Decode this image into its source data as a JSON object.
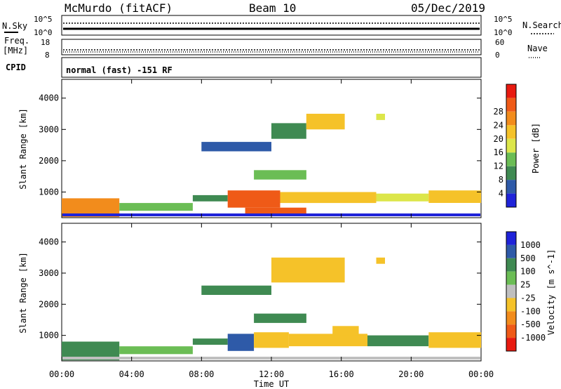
{
  "header": {
    "station": "McMurdo (fitACF)",
    "beam": "Beam 10",
    "date": "05/Dec/2019"
  },
  "aux_panels": {
    "nsky_label": "N.Sky",
    "nsearch_label": "N.Search",
    "noise_ticks": [
      "10^5",
      "10^0"
    ],
    "freq_label_1": "Freq.",
    "freq_label_2": "[MHz]",
    "freq_ticks": [
      "18",
      "8"
    ],
    "nave_label": "Nave",
    "nave_ticks": [
      "60",
      "0"
    ],
    "cpid_label": "CPID",
    "cpid_text": "normal (fast) -151 RF"
  },
  "colors": {
    "power": [
      "#1f23d9",
      "#2e5aa8",
      "#3f8a52",
      "#6bbd55",
      "#dce64a",
      "#f5c229",
      "#f28c1c",
      "#ef5a17",
      "#e81a10"
    ],
    "velocity": [
      "#1f23d9",
      "#2e5aa8",
      "#3f8a52",
      "#6bbd55",
      "#bfbfbf",
      "#f5c229",
      "#f28c1c",
      "#ef5a17",
      "#e81a10"
    ]
  },
  "chart_data": [
    {
      "type": "heatmap",
      "title": "Power",
      "xlabel": "Time UT",
      "ylabel": "Slant Range [km]",
      "x_ticks": [
        "00:00",
        "04:00",
        "08:00",
        "12:00",
        "16:00",
        "20:00",
        "00:00"
      ],
      "y_ticks": [
        1000,
        2000,
        3000,
        4000
      ],
      "ylim": [
        180,
        4600
      ],
      "xlim_hours": [
        0,
        24
      ],
      "colorbar_label": "Power [dB]",
      "colorbar_ticks": [
        "4",
        "8",
        "12",
        "16",
        "20",
        "24",
        "28"
      ],
      "colorbar_range": [
        0,
        32
      ],
      "regions": [
        {
          "t0": 0.0,
          "t1": 3.3,
          "r0": 200,
          "r1": 800,
          "value": 24
        },
        {
          "t0": 3.3,
          "t1": 7.5,
          "r0": 400,
          "r1": 650,
          "value": 14
        },
        {
          "t0": 7.5,
          "t1": 9.5,
          "r0": 700,
          "r1": 900,
          "value": 8
        },
        {
          "t0": 9.5,
          "t1": 12.5,
          "r0": 500,
          "r1": 1050,
          "value": 28
        },
        {
          "t0": 12.5,
          "t1": 18.0,
          "r0": 650,
          "r1": 1000,
          "value": 18
        },
        {
          "t0": 18.0,
          "t1": 21.0,
          "r0": 700,
          "r1": 950,
          "value": 16
        },
        {
          "t0": 21.0,
          "t1": 24.0,
          "r0": 650,
          "r1": 1050,
          "value": 20
        },
        {
          "t0": 10.5,
          "t1": 14.0,
          "r0": 300,
          "r1": 500,
          "value": 26
        },
        {
          "t0": 11.0,
          "t1": 14.0,
          "r0": 1400,
          "r1": 1700,
          "value": 12
        },
        {
          "t0": 8.0,
          "t1": 12.0,
          "r0": 2300,
          "r1": 2600,
          "value": 6
        },
        {
          "t0": 12.0,
          "t1": 14.0,
          "r0": 2700,
          "r1": 3200,
          "value": 8
        },
        {
          "t0": 14.0,
          "t1": 16.2,
          "r0": 3000,
          "r1": 3500,
          "value": 18
        },
        {
          "t0": 18.0,
          "t1": 18.5,
          "r0": 3300,
          "r1": 3500,
          "value": 16
        }
      ]
    },
    {
      "type": "heatmap",
      "title": "Velocity",
      "xlabel": "Time UT",
      "ylabel": "Slant Range [km]",
      "x_ticks": [
        "00:00",
        "04:00",
        "08:00",
        "12:00",
        "16:00",
        "20:00",
        "00:00"
      ],
      "y_ticks": [
        1000,
        2000,
        3000,
        4000
      ],
      "ylim": [
        180,
        4600
      ],
      "xlim_hours": [
        0,
        24
      ],
      "colorbar_label": "Velocity [m s^-1]",
      "colorbar_ticks": [
        "1000",
        "500",
        "100",
        "25",
        "-25",
        "-100",
        "-500",
        "-1000"
      ],
      "regions": [
        {
          "t0": 0.0,
          "t1": 3.3,
          "r0": 200,
          "r1": 800,
          "value": 100
        },
        {
          "t0": 3.3,
          "t1": 7.5,
          "r0": 400,
          "r1": 650,
          "value": 25
        },
        {
          "t0": 7.5,
          "t1": 9.5,
          "r0": 700,
          "r1": 900,
          "value": 100
        },
        {
          "t0": 9.5,
          "t1": 11.0,
          "r0": 500,
          "r1": 1050,
          "value": 500
        },
        {
          "t0": 11.0,
          "t1": 13.0,
          "r0": 600,
          "r1": 1100,
          "value": -100
        },
        {
          "t0": 13.0,
          "t1": 17.5,
          "r0": 650,
          "r1": 1050,
          "value": -100
        },
        {
          "t0": 15.5,
          "t1": 17.0,
          "r0": 1000,
          "r1": 1300,
          "value": -100
        },
        {
          "t0": 17.5,
          "t1": 21.0,
          "r0": 650,
          "r1": 1000,
          "value": 100
        },
        {
          "t0": 21.0,
          "t1": 24.0,
          "r0": 600,
          "r1": 1100,
          "value": -100
        },
        {
          "t0": 11.0,
          "t1": 14.0,
          "r0": 1400,
          "r1": 1700,
          "value": 100
        },
        {
          "t0": 8.0,
          "t1": 12.0,
          "r0": 2300,
          "r1": 2600,
          "value": 100
        },
        {
          "t0": 12.0,
          "t1": 16.2,
          "r0": 2700,
          "r1": 3500,
          "value": -100
        },
        {
          "t0": 18.0,
          "t1": 18.5,
          "r0": 3300,
          "r1": 3500,
          "value": -100
        }
      ]
    }
  ]
}
